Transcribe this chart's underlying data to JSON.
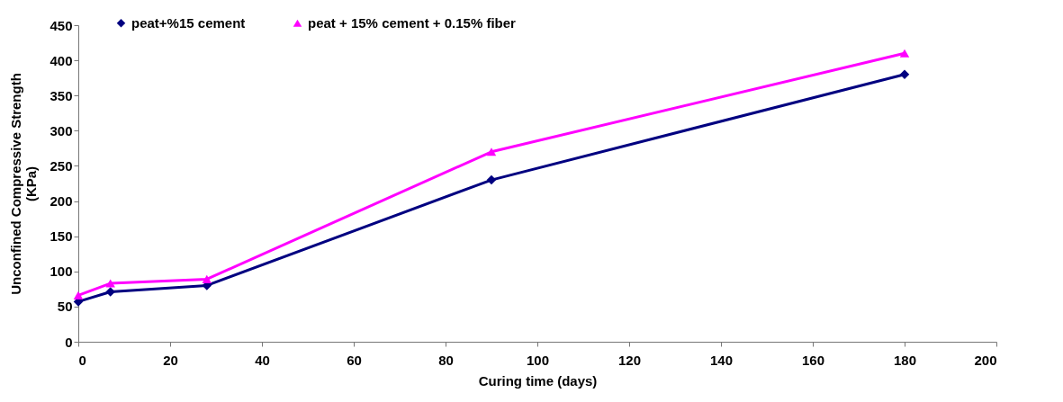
{
  "chart_data": {
    "type": "line",
    "xlabel": "Curing time (days)",
    "ylabel": "Unconfined Compressive Strength\n(KPa)",
    "x": [
      0,
      7,
      28,
      90,
      180
    ],
    "series": [
      {
        "name": "peat+%15 cement",
        "color": "#000080",
        "marker": "diamond",
        "values": [
          57,
          71,
          80,
          230,
          380
        ]
      },
      {
        "name": "peat + 15% cement + 0.15% fiber",
        "color": "#ff00ff",
        "marker": "triangle",
        "values": [
          66,
          83,
          89,
          270,
          410
        ]
      }
    ],
    "xlim": [
      0,
      200
    ],
    "xticks": [
      0,
      20,
      40,
      60,
      80,
      100,
      120,
      140,
      160,
      180,
      200
    ],
    "ylim": [
      0,
      450
    ],
    "yticks": [
      0,
      50,
      100,
      150,
      200,
      250,
      300,
      350,
      400,
      450
    ],
    "grid": false,
    "legend": "top"
  }
}
